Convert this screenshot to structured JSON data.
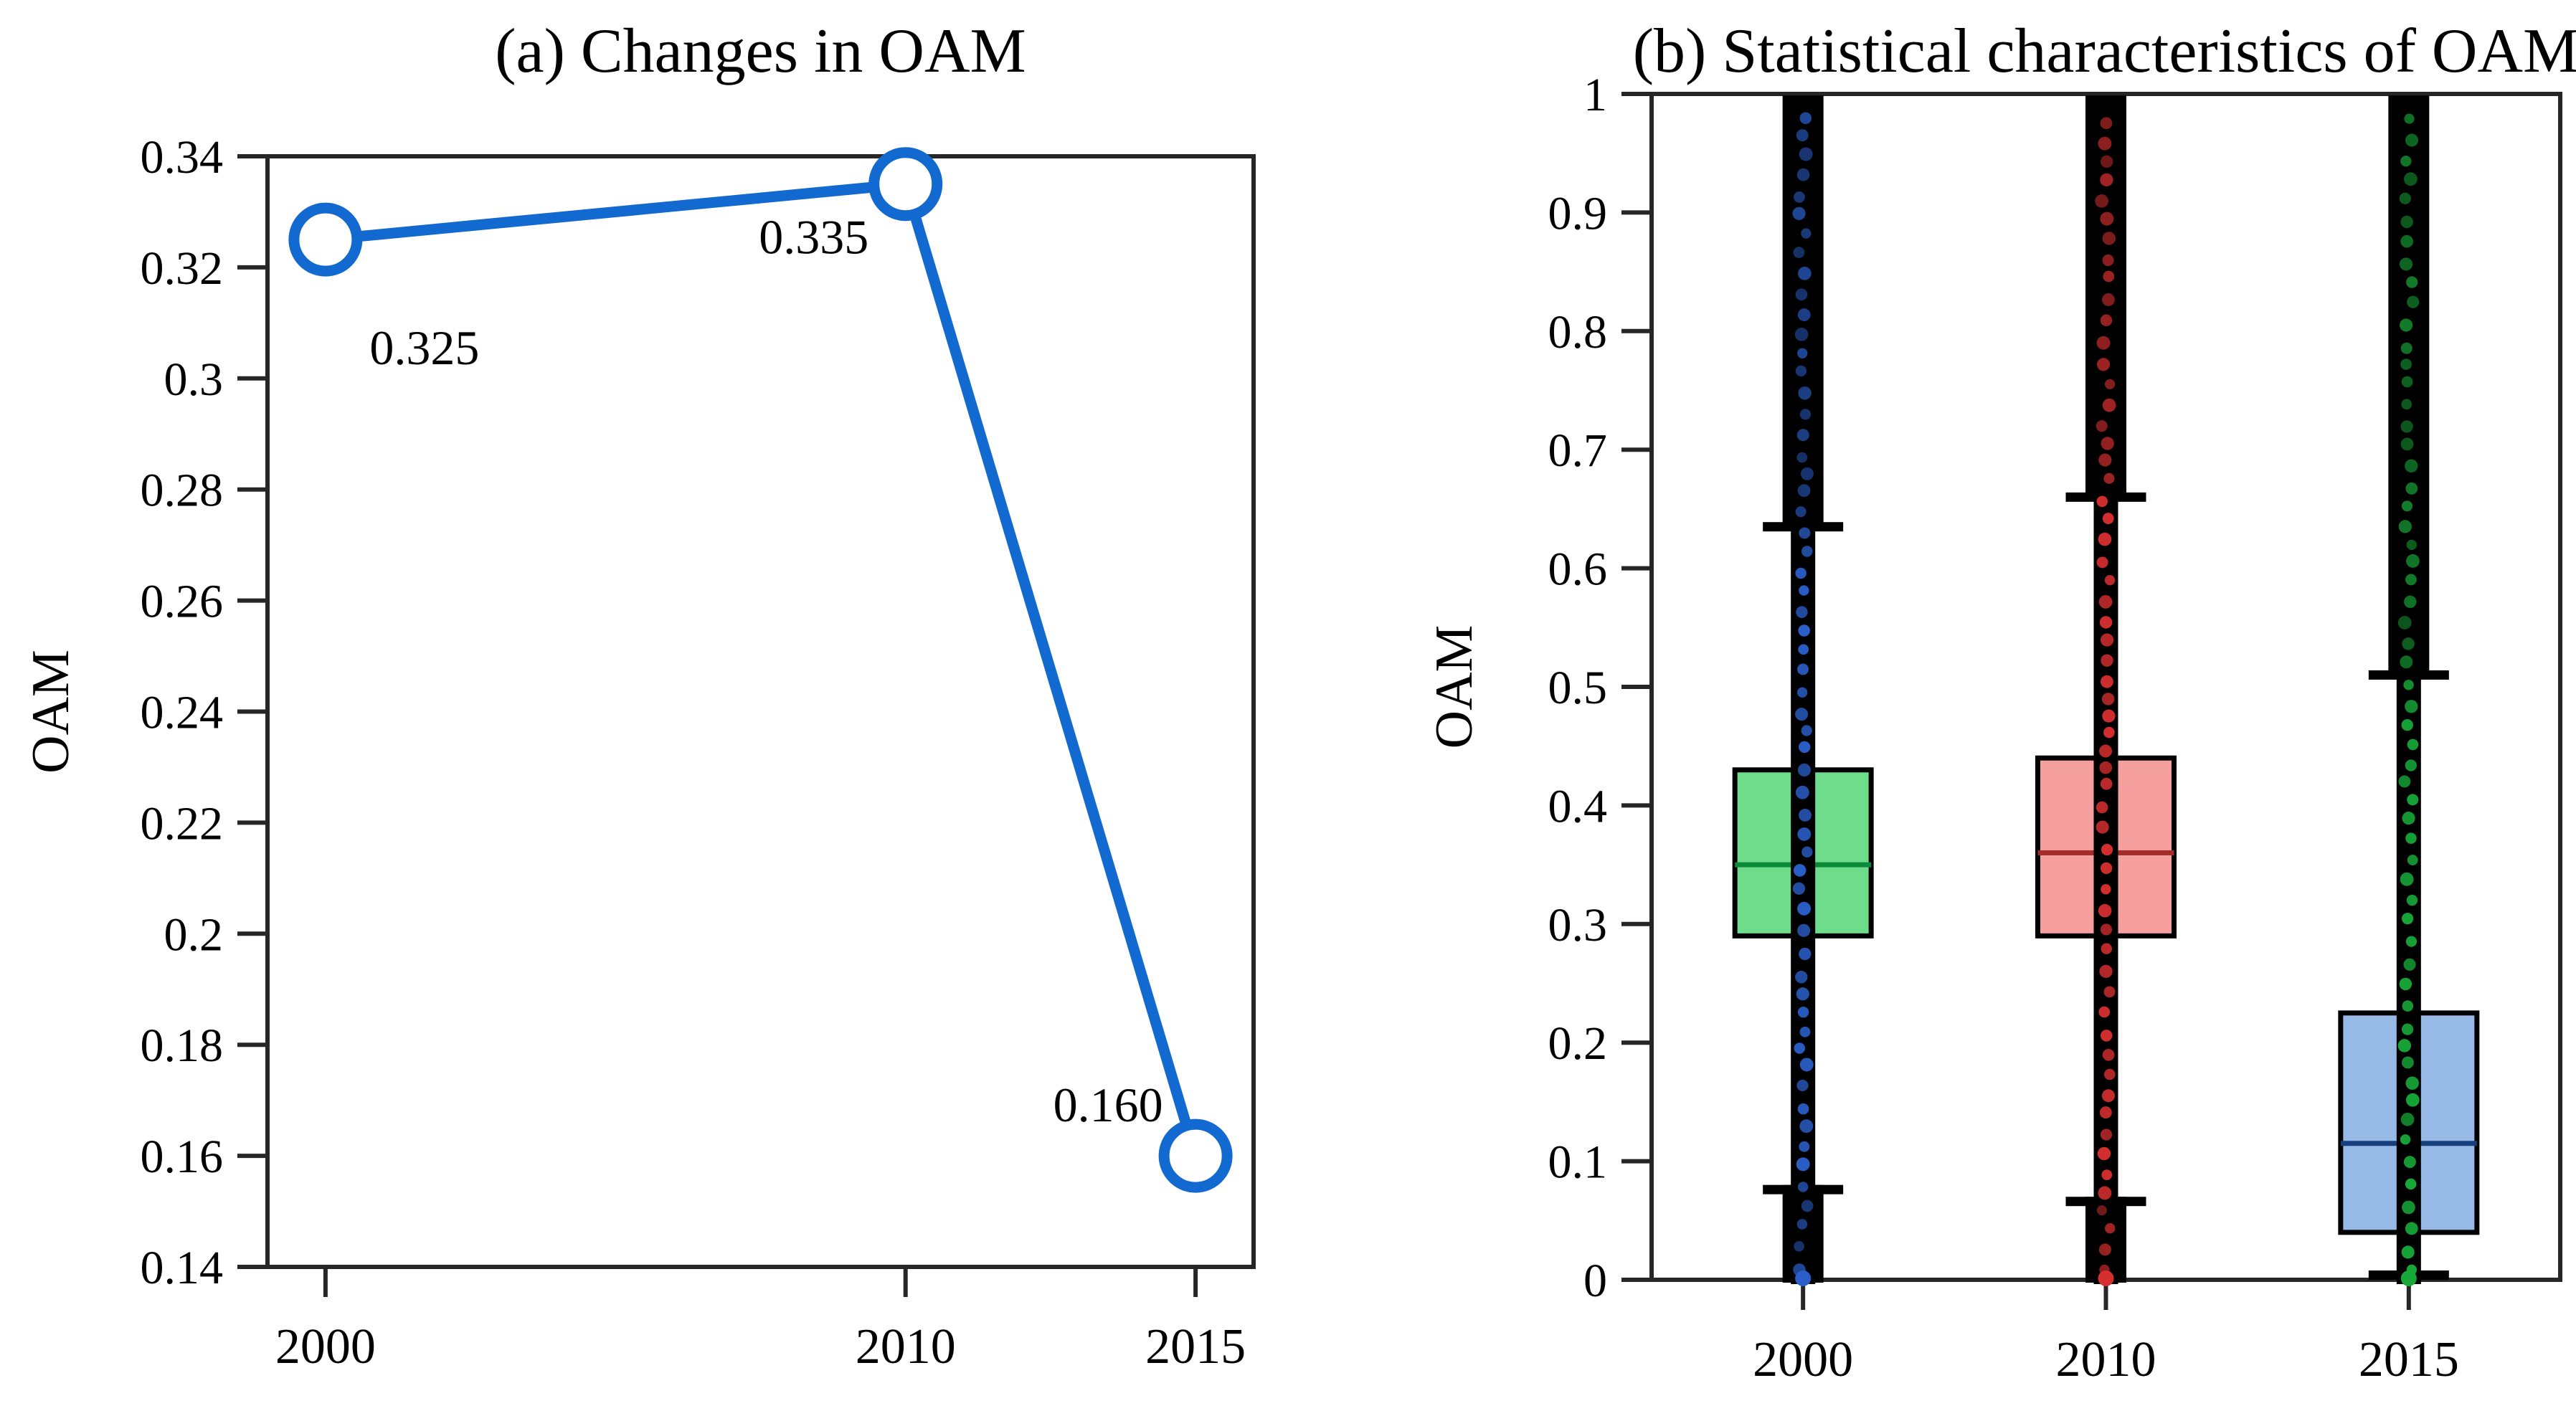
{
  "figure": {
    "background": "#ffffff"
  },
  "chart_data": [
    {
      "type": "line",
      "panel": "a",
      "title": "(a) Changes in OAM",
      "ylabel": "OAM",
      "x": [
        2000,
        2010,
        2015
      ],
      "y": [
        0.325,
        0.335,
        0.16
      ],
      "point_labels": [
        "0.325",
        "0.335",
        "0.160"
      ],
      "xtick_labels": [
        "2000",
        "2010",
        "2015"
      ],
      "ytick_values": [
        0.34,
        0.32,
        0.3,
        0.28,
        0.26,
        0.24,
        0.22,
        0.2,
        0.18,
        0.16,
        0.14
      ],
      "ytick_labels": [
        "0.34",
        "0.32",
        "0.3",
        "0.28",
        "0.26",
        "0.24",
        "0.22",
        "0.2",
        "0.18",
        "0.16",
        "0.14"
      ],
      "xlim": [
        1999,
        2016
      ],
      "ylim": [
        0.14,
        0.34
      ],
      "grid": false,
      "legend": false,
      "line_color": "#1269d0",
      "marker": "open-circle"
    },
    {
      "type": "box",
      "panel": "b",
      "title": "(b) Statistical characteristics of OAM",
      "ylabel": "OAM",
      "categories": [
        "2000",
        "2010",
        "2015"
      ],
      "ylim": [
        0,
        1
      ],
      "ytick_values": [
        1,
        0.9,
        0.8,
        0.7,
        0.6,
        0.5,
        0.4,
        0.3,
        0.2,
        0.1,
        0
      ],
      "ytick_labels": [
        "1",
        "0.9",
        "0.8",
        "0.7",
        "0.6",
        "0.5",
        "0.4",
        "0.3",
        "0.2",
        "0.1",
        "0"
      ],
      "grid": false,
      "legend": false,
      "series": [
        {
          "category": "2000",
          "whisker_low": 0.08,
          "q1": 0.29,
          "median": 0.35,
          "q3": 0.43,
          "whisker_high": 0.635,
          "outliers_above": [
            0.635,
            1.0
          ],
          "outliers_below": [
            0.0,
            0.08
          ],
          "box_fill": "#6edc8a",
          "median_color": "#0c8a3a",
          "point_color": "#2a5fc9"
        },
        {
          "category": "2010",
          "whisker_low": 0.07,
          "q1": 0.29,
          "median": 0.36,
          "q3": 0.44,
          "whisker_high": 0.66,
          "outliers_above": [
            0.66,
            1.0
          ],
          "outliers_below": [
            0.0,
            0.07
          ],
          "box_fill": "#f59f9f",
          "median_color": "#a32c2c",
          "point_color": "#d62f2f"
        },
        {
          "category": "2015",
          "whisker_low": 0.0,
          "q1": 0.04,
          "median": 0.115,
          "q3": 0.225,
          "whisker_high": 0.51,
          "outliers_above": [
            0.51,
            1.0
          ],
          "outliers_below": null,
          "box_fill": "#97b9e6",
          "median_color": "#173f7d",
          "point_color": "#17a838"
        }
      ]
    }
  ]
}
